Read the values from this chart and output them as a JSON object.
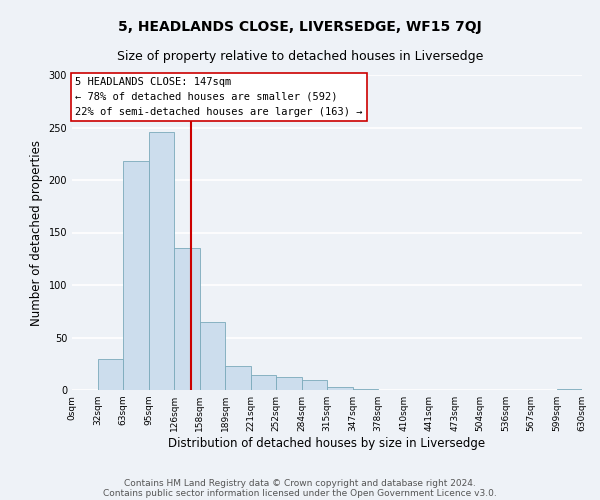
{
  "title": "5, HEADLANDS CLOSE, LIVERSEDGE, WF15 7QJ",
  "subtitle": "Size of property relative to detached houses in Liversedge",
  "xlabel": "Distribution of detached houses by size in Liversedge",
  "ylabel": "Number of detached properties",
  "bar_color": "#ccdded",
  "bar_edge_color": "#7aaabb",
  "bins": [
    0,
    32,
    63,
    95,
    126,
    158,
    189,
    221,
    252,
    284,
    315,
    347,
    378,
    410,
    441,
    473,
    504,
    536,
    567,
    599,
    630
  ],
  "values": [
    0,
    30,
    218,
    246,
    135,
    65,
    23,
    14,
    12,
    10,
    3,
    1,
    0,
    0,
    0,
    0,
    0,
    0,
    0,
    1
  ],
  "tick_labels": [
    "0sqm",
    "32sqm",
    "63sqm",
    "95sqm",
    "126sqm",
    "158sqm",
    "189sqm",
    "221sqm",
    "252sqm",
    "284sqm",
    "315sqm",
    "347sqm",
    "378sqm",
    "410sqm",
    "441sqm",
    "473sqm",
    "504sqm",
    "536sqm",
    "567sqm",
    "599sqm",
    "630sqm"
  ],
  "vline_x": 147,
  "vline_color": "#cc0000",
  "annotation_title": "5 HEADLANDS CLOSE: 147sqm",
  "annotation_line1": "← 78% of detached houses are smaller (592)",
  "annotation_line2": "22% of semi-detached houses are larger (163) →",
  "annotation_box_color": "#ffffff",
  "annotation_box_edge": "#cc0000",
  "ylim": [
    0,
    300
  ],
  "xlim": [
    0,
    630
  ],
  "footer1": "Contains HM Land Registry data © Crown copyright and database right 2024.",
  "footer2": "Contains public sector information licensed under the Open Government Licence v3.0.",
  "bg_color": "#eef2f7",
  "plot_bg_color": "#eef2f7",
  "grid_color": "#ffffff",
  "title_fontsize": 10,
  "subtitle_fontsize": 9,
  "axis_label_fontsize": 8.5,
  "tick_fontsize": 6.5,
  "footer_fontsize": 6.5
}
